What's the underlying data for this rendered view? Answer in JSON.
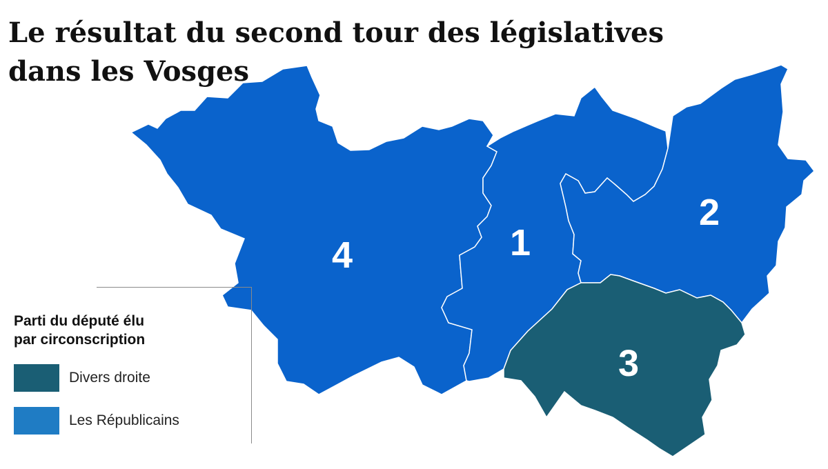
{
  "title": {
    "line1": "Le résultat du second tour des  législatives",
    "line2": "dans les Vosges"
  },
  "legend": {
    "title": "Parti du député élu\npar circonscription",
    "items": [
      {
        "label": "Divers droite",
        "color": "#1a5e74"
      },
      {
        "label": "Les Républicains",
        "color": "#1f7cc4"
      }
    ]
  },
  "map": {
    "colors": {
      "divers_droite": "#1a5e74",
      "les_republicains": "#0a63cc",
      "border": "#ffffff"
    },
    "circonscriptions": [
      {
        "number": "4",
        "party": "Les Républicains"
      },
      {
        "number": "1",
        "party": "Les Républicains"
      },
      {
        "number": "2",
        "party": "Les Républicains"
      },
      {
        "number": "3",
        "party": "Divers droite"
      }
    ]
  }
}
